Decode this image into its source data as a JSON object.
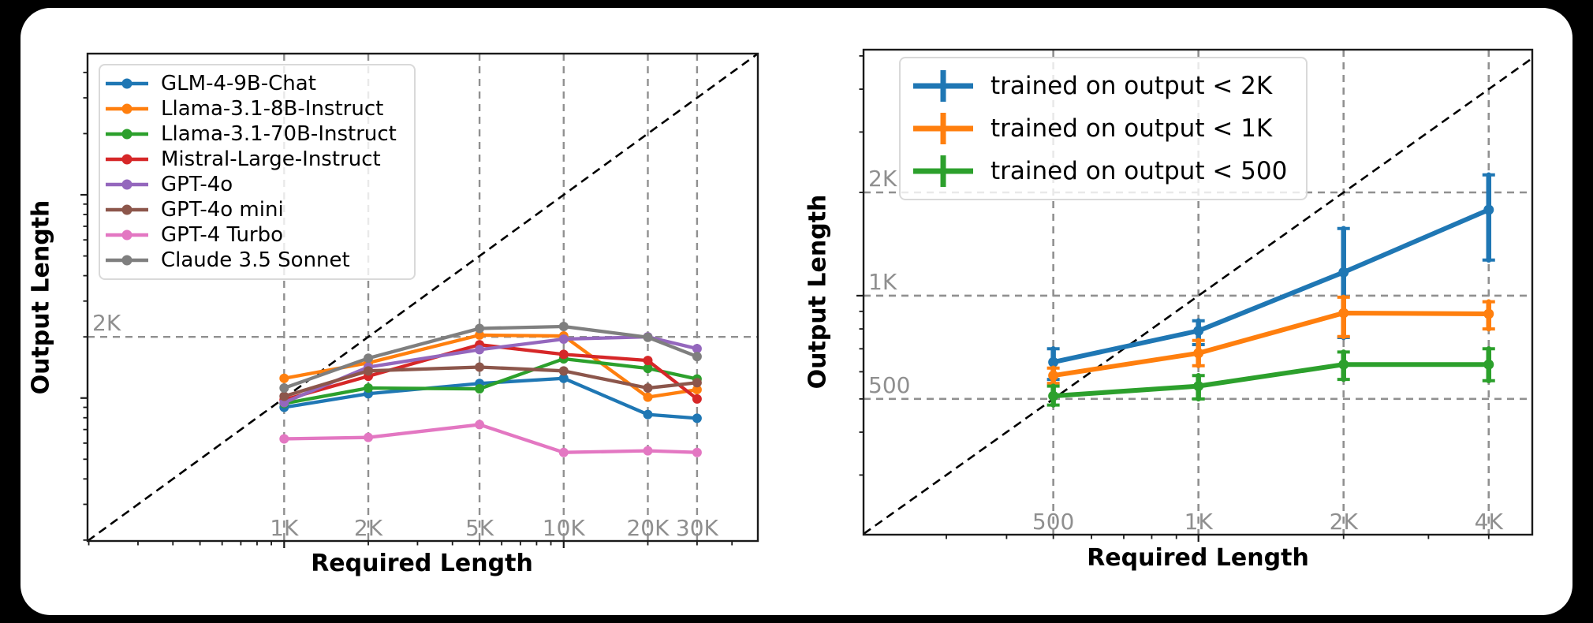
{
  "figure": {
    "background_color": "#000000",
    "card_color": "#ffffff",
    "grid_color": "#909090",
    "diagonal_color": "#000000",
    "tick_label_color": "#8f8f8f",
    "axis_label_color": "#000000",
    "diagonal_meaning": "y = x reference (dashed)"
  },
  "chart_data": [
    {
      "type": "line",
      "xlabel": "Required Length",
      "ylabel": "Output Length",
      "xscale": "log",
      "yscale": "log",
      "xlim": [
        198,
        49500
      ],
      "ylim": [
        198,
        49500
      ],
      "grid": true,
      "legend_position": "upper left",
      "x": [
        1000,
        2000,
        5000,
        10000,
        20000,
        30000
      ],
      "x_ticks": [
        {
          "value": 1000,
          "label": "1K"
        },
        {
          "value": 2000,
          "label": "2K"
        },
        {
          "value": 5000,
          "label": "5K"
        },
        {
          "value": 10000,
          "label": "10K"
        },
        {
          "value": 20000,
          "label": "20K"
        },
        {
          "value": 30000,
          "label": "30K"
        }
      ],
      "y_ticks": [
        {
          "value": 2000,
          "label": "2K"
        }
      ],
      "series": [
        {
          "name": "GLM-4-9B-Chat",
          "color": "#1f77b4",
          "values": [
            900,
            1050,
            1180,
            1250,
            830,
            795
          ]
        },
        {
          "name": "Llama-3.1-8B-Instruct",
          "color": "#ff7f0e",
          "values": [
            1250,
            1490,
            2040,
            2020,
            1010,
            1100
          ]
        },
        {
          "name": "Llama-3.1-70B-Instruct",
          "color": "#2ca02c",
          "values": [
            940,
            1120,
            1110,
            1560,
            1400,
            1240
          ]
        },
        {
          "name": "Mistral-Large-Instruct",
          "color": "#d62728",
          "values": [
            980,
            1280,
            1830,
            1640,
            1530,
            990
          ]
        },
        {
          "name": "GPT-4o",
          "color": "#9467bd",
          "values": [
            950,
            1420,
            1730,
            1950,
            2000,
            1750
          ]
        },
        {
          "name": "GPT-4o mini",
          "color": "#8c564b",
          "values": [
            1020,
            1360,
            1420,
            1360,
            1120,
            1190
          ]
        },
        {
          "name": "GPT-4 Turbo",
          "color": "#e377c2",
          "values": [
            630,
            640,
            740,
            540,
            550,
            540
          ]
        },
        {
          "name": "Claude 3.5 Sonnet",
          "color": "#7f7f7f",
          "values": [
            1120,
            1570,
            2200,
            2250,
            1990,
            1600
          ]
        }
      ]
    },
    {
      "type": "line",
      "xlabel": "Required Length",
      "ylabel": "Output Length",
      "xscale": "log",
      "yscale": "log",
      "xlim": [
        202,
        4925
      ],
      "ylim": [
        201,
        5214
      ],
      "grid": true,
      "legend_position": "upper center",
      "x": [
        500,
        1000,
        2000,
        4000
      ],
      "x_ticks": [
        {
          "value": 500,
          "label": "500"
        },
        {
          "value": 1000,
          "label": "1K"
        },
        {
          "value": 2000,
          "label": "2K"
        },
        {
          "value": 4000,
          "label": "4K"
        }
      ],
      "y_ticks": [
        {
          "value": 2000,
          "label": "2K"
        },
        {
          "value": 1000,
          "label": "1K"
        },
        {
          "value": 500,
          "label": "500"
        }
      ],
      "series": [
        {
          "name": "trained on output < 2K",
          "color": "#1f77b4",
          "values": [
            640,
            790,
            1170,
            1780
          ],
          "err_low": [
            570,
            720,
            755,
            1270
          ],
          "err_high": [
            700,
            845,
            1570,
            2250
          ]
        },
        {
          "name": "trained on output < 1K",
          "color": "#ff7f0e",
          "values": [
            585,
            680,
            890,
            885
          ],
          "err_low": [
            555,
            625,
            760,
            800
          ],
          "err_high": [
            615,
            740,
            990,
            960
          ]
        },
        {
          "name": "trained on output < 500",
          "color": "#2ca02c",
          "values": [
            510,
            545,
            630,
            630
          ],
          "err_low": [
            480,
            500,
            570,
            565
          ],
          "err_high": [
            545,
            585,
            685,
            700
          ]
        }
      ]
    }
  ]
}
